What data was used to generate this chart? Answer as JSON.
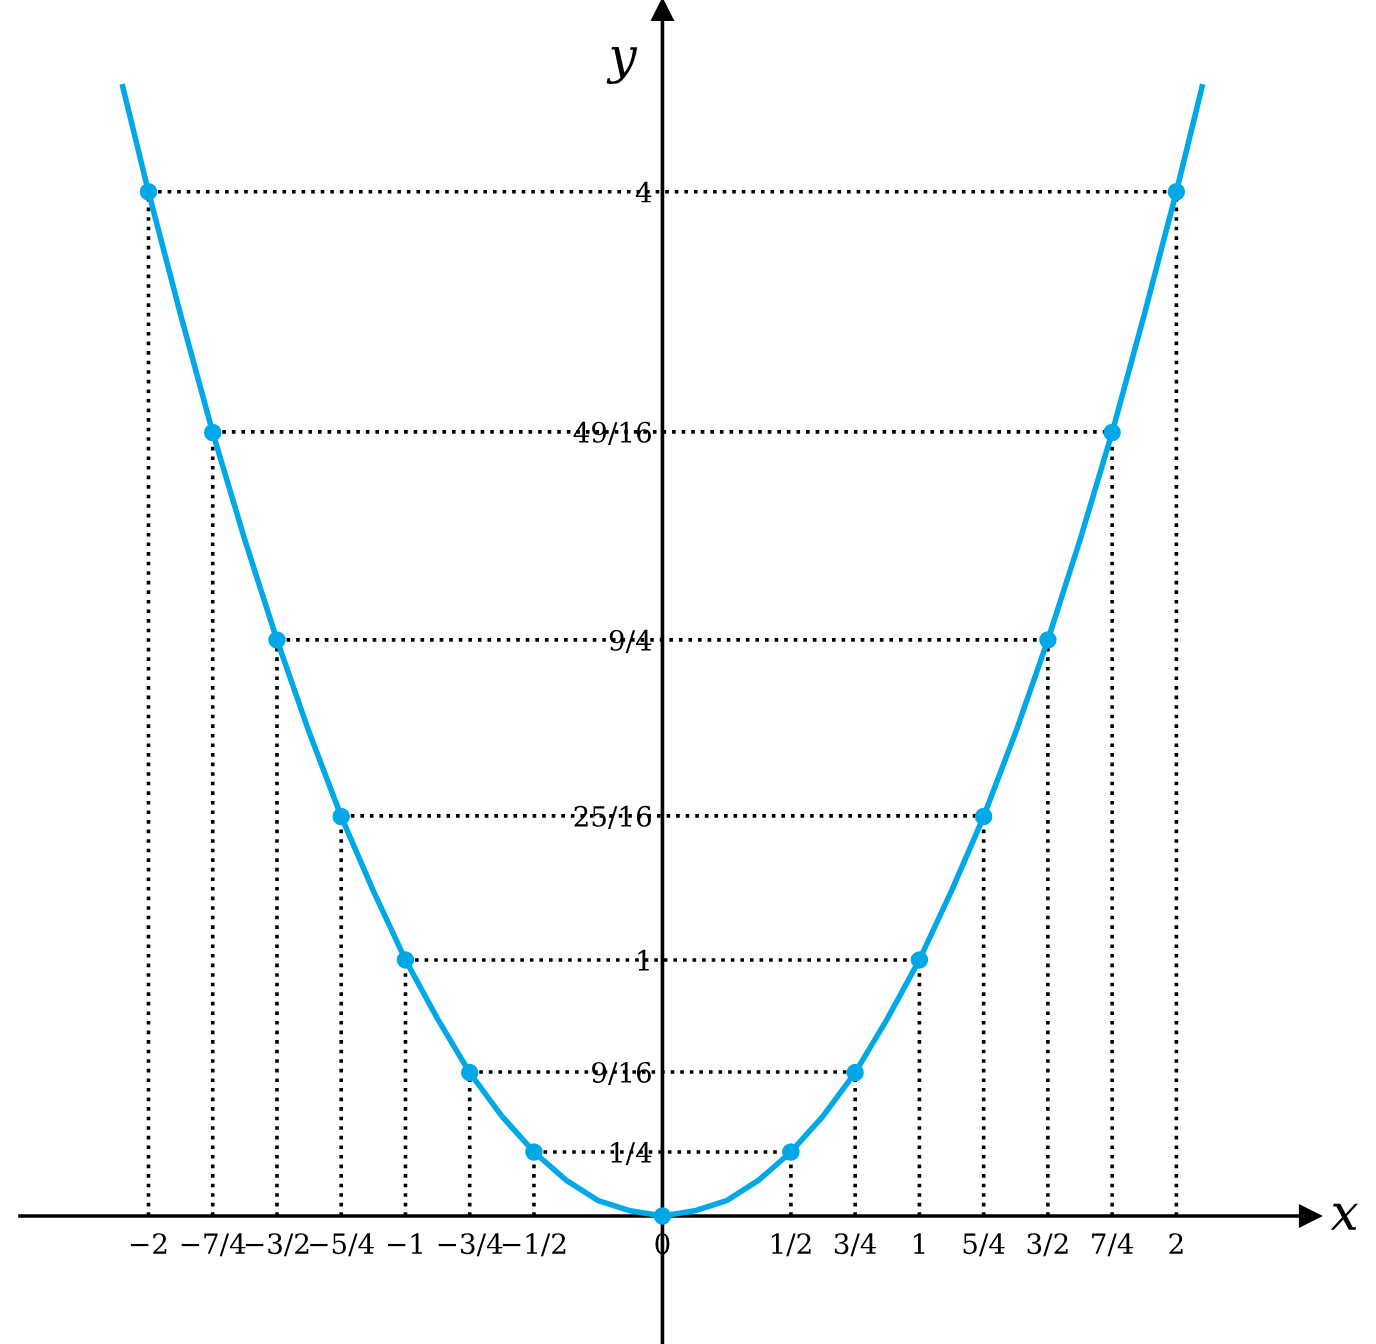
{
  "chart_data": {
    "type": "line",
    "xlabel": "x",
    "ylabel": "y",
    "xlim": [
      -2.5,
      2.52
    ],
    "ylim": [
      -0.5,
      4.71
    ],
    "xticks": [
      {
        "value": -2,
        "label": "−2"
      },
      {
        "value": -1.75,
        "label": "−7/4"
      },
      {
        "value": -1.5,
        "label": "−3/2"
      },
      {
        "value": -1.25,
        "label": "−5/4"
      },
      {
        "value": -1,
        "label": "−1"
      },
      {
        "value": -0.75,
        "label": "−3/4"
      },
      {
        "value": -0.5,
        "label": "−1/2"
      },
      0,
      {
        "value": 0.5,
        "label": "1/2"
      },
      {
        "value": 0.75,
        "label": "3/4"
      },
      1,
      {
        "value": 1.25,
        "label": "5/4"
      },
      {
        "value": 1.5,
        "label": "3/2"
      },
      {
        "value": 1.75,
        "label": "7/4"
      },
      2
    ],
    "yticks": [
      {
        "value": 0.25,
        "label": "1/4"
      },
      {
        "value": 0.5625,
        "label": "9/16"
      },
      1,
      {
        "value": 1.5625,
        "label": "25/16"
      },
      {
        "value": 2.25,
        "label": "9/4"
      },
      {
        "value": 3.0625,
        "label": "49/16"
      },
      4
    ],
    "series": [
      {
        "color": "#00a8e8",
        "x": [
          -2.1,
          -2,
          -1.875,
          -1.75,
          -1.625,
          -1.5,
          -1.375,
          -1.25,
          -1.125,
          -1,
          -0.875,
          -0.75,
          -0.625,
          -0.5,
          -0.375,
          -0.25,
          -0.125,
          0,
          0.125,
          0.25,
          0.375,
          0.5,
          0.625,
          0.75,
          0.875,
          1,
          1.125,
          1.25,
          1.375,
          1.5,
          1.625,
          1.75,
          1.875,
          2,
          2.1
        ],
        "values": [
          4.41,
          4,
          3.52,
          3.06,
          2.64,
          2.25,
          1.89,
          1.56,
          1.27,
          1,
          0.77,
          0.56,
          0.39,
          0.25,
          0.14,
          0.06,
          0.02,
          0,
          0.02,
          0.06,
          0.14,
          0.25,
          0.39,
          0.56,
          0.77,
          1,
          1.27,
          1.56,
          1.89,
          2.25,
          2.64,
          3.06,
          3.52,
          4,
          4.41
        ]
      },
      {
        "type": "lollipop",
        "color": "#00a8e8",
        "marker": "circle",
        "line_style": "dotted",
        "x": [
          -2,
          -1.75,
          -1.5,
          -1.25,
          -1,
          -0.75,
          -0.5,
          0,
          0.5,
          0.75,
          1,
          1.25,
          1.5,
          1.75,
          2
        ],
        "values": [
          4,
          3.06,
          2.25,
          1.56,
          1,
          0.56,
          0.25,
          0,
          0.25,
          0.56,
          1,
          1.56,
          2.25,
          3.06,
          4
        ]
      }
    ],
    "ref_lines": [
      {
        "axis": "y",
        "value": 0.25,
        "line_style": "dotted",
        "color": "#000000"
      },
      {
        "axis": "y",
        "value": 0.5625,
        "line_style": "dotted",
        "color": "#000000"
      },
      {
        "axis": "y",
        "value": 1,
        "line_style": "dotted",
        "color": "#000000"
      },
      {
        "axis": "y",
        "value": 1.5625,
        "line_style": "dotted",
        "color": "#000000"
      },
      {
        "axis": "y",
        "value": 2.25,
        "line_style": "dotted",
        "color": "#000000"
      },
      {
        "axis": "y",
        "value": 3.0625,
        "line_style": "dotted",
        "color": "#000000"
      },
      {
        "axis": "y",
        "value": 4,
        "line_style": "dotted",
        "color": "#000000"
      }
    ]
  }
}
